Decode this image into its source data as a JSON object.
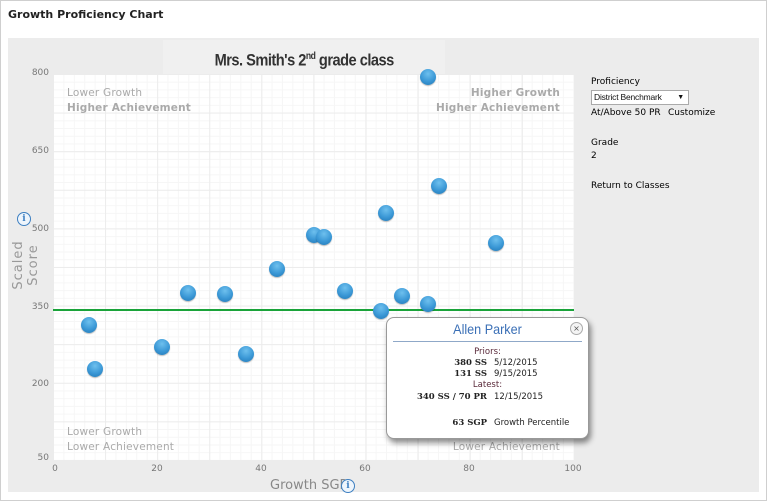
{
  "page": {
    "title": "Growth Proficiency Chart"
  },
  "chart": {
    "title_prefix": "Mrs. Smith's 2",
    "title_sup": "nd",
    "title_suffix": " grade class",
    "quadrants": {
      "top_left": [
        "Lower Growth",
        "Higher Achievement"
      ],
      "top_right": [
        "Higher Growth",
        "Higher Achievement"
      ],
      "bottom_left": [
        "Lower Growth",
        "Lower Achievement"
      ],
      "bottom_right": [
        "Higher Growth",
        "Lower Achievement"
      ]
    },
    "y_axis_label": "Scaled Score",
    "x_axis_label": "Growth SGP",
    "info_icon": "i"
  },
  "chart_data": {
    "type": "scatter",
    "title": "Mrs. Smith's 2nd grade class",
    "xlabel": "Growth SGP",
    "ylabel": "Scaled Score",
    "xlim": [
      0,
      100
    ],
    "ylim": [
      50,
      800
    ],
    "x_ticks": [
      0,
      20,
      40,
      60,
      80,
      100
    ],
    "y_ticks": [
      50,
      200,
      350,
      500,
      650,
      800
    ],
    "grid": true,
    "benchmark_line": {
      "y": 341,
      "color": "#1aa33a",
      "label": "District Benchmark At/Above 50 PR"
    },
    "points": [
      {
        "x": 7,
        "y": 313
      },
      {
        "x": 8,
        "y": 227
      },
      {
        "x": 21,
        "y": 270
      },
      {
        "x": 26,
        "y": 375
      },
      {
        "x": 33,
        "y": 373
      },
      {
        "x": 37,
        "y": 255
      },
      {
        "x": 43,
        "y": 422
      },
      {
        "x": 50,
        "y": 487
      },
      {
        "x": 52,
        "y": 483
      },
      {
        "x": 56,
        "y": 378
      },
      {
        "x": 63,
        "y": 340,
        "name": "Allen Parker"
      },
      {
        "x": 64,
        "y": 530
      },
      {
        "x": 67,
        "y": 368
      },
      {
        "x": 72,
        "y": 795
      },
      {
        "x": 72,
        "y": 354
      },
      {
        "x": 74,
        "y": 583
      },
      {
        "x": 85,
        "y": 471
      }
    ],
    "quadrant_labels": [
      "Lower Growth Higher Achievement",
      "Higher Growth Higher Achievement",
      "Lower Growth Lower Achievement",
      "Higher Growth Lower Achievement"
    ]
  },
  "sidebar": {
    "proficiency_label": "Proficiency",
    "proficiency_select": "District Benchmark",
    "proficiency_arrow": "▼",
    "threshold_text": "At/Above 50 PR",
    "customize_link": "Customize",
    "grade_label": "Grade",
    "grade_value": "2",
    "return_link": "Return to Classes"
  },
  "popup": {
    "student_name": "Allen Parker",
    "close_icon": "×",
    "priors_label": "Priors:",
    "priors": [
      {
        "score": "380 SS",
        "date": "5/12/2015"
      },
      {
        "score": "131 SS",
        "date": "9/15/2015"
      }
    ],
    "latest_label": "Latest:",
    "latest": {
      "score": "340 SS / 70 PR",
      "date": "12/15/2015"
    },
    "sgp": {
      "value": "63 SGP",
      "label": "Growth Percentile"
    }
  },
  "colors": {
    "point": "#3b98d6",
    "benchmark": "#1aa33a",
    "link": "#2b4a8a",
    "popup_name": "#3a6fb6"
  }
}
